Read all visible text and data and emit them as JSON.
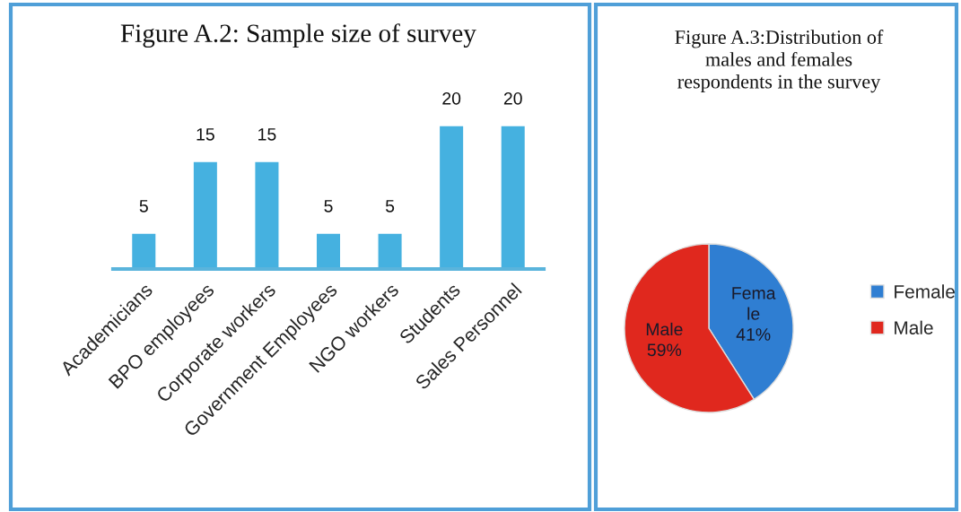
{
  "chart_data": [
    {
      "type": "bar",
      "title": "Figure A.2: Sample size of survey",
      "categories": [
        "Academicians",
        "BPO employees",
        "Corporate workers",
        "Government Employees",
        "NGO workers",
        "Students",
        "Sales Personnel"
      ],
      "values": [
        5,
        15,
        15,
        5,
        5,
        20,
        20
      ],
      "color": "#45b1e0",
      "data_labels": true,
      "tick_labels": "x"
    },
    {
      "type": "pie",
      "title": "Figure A.3:Distribution of\nmales and females\nrespondents in the survey",
      "categories": [
        "Female",
        "Male"
      ],
      "values": [
        41,
        59
      ],
      "colors": [
        "#2f7ed2",
        "#e0281e"
      ],
      "value_labels": [
        "Fema\nle\n41%",
        "Male\n59%"
      ],
      "legend": "right"
    }
  ]
}
